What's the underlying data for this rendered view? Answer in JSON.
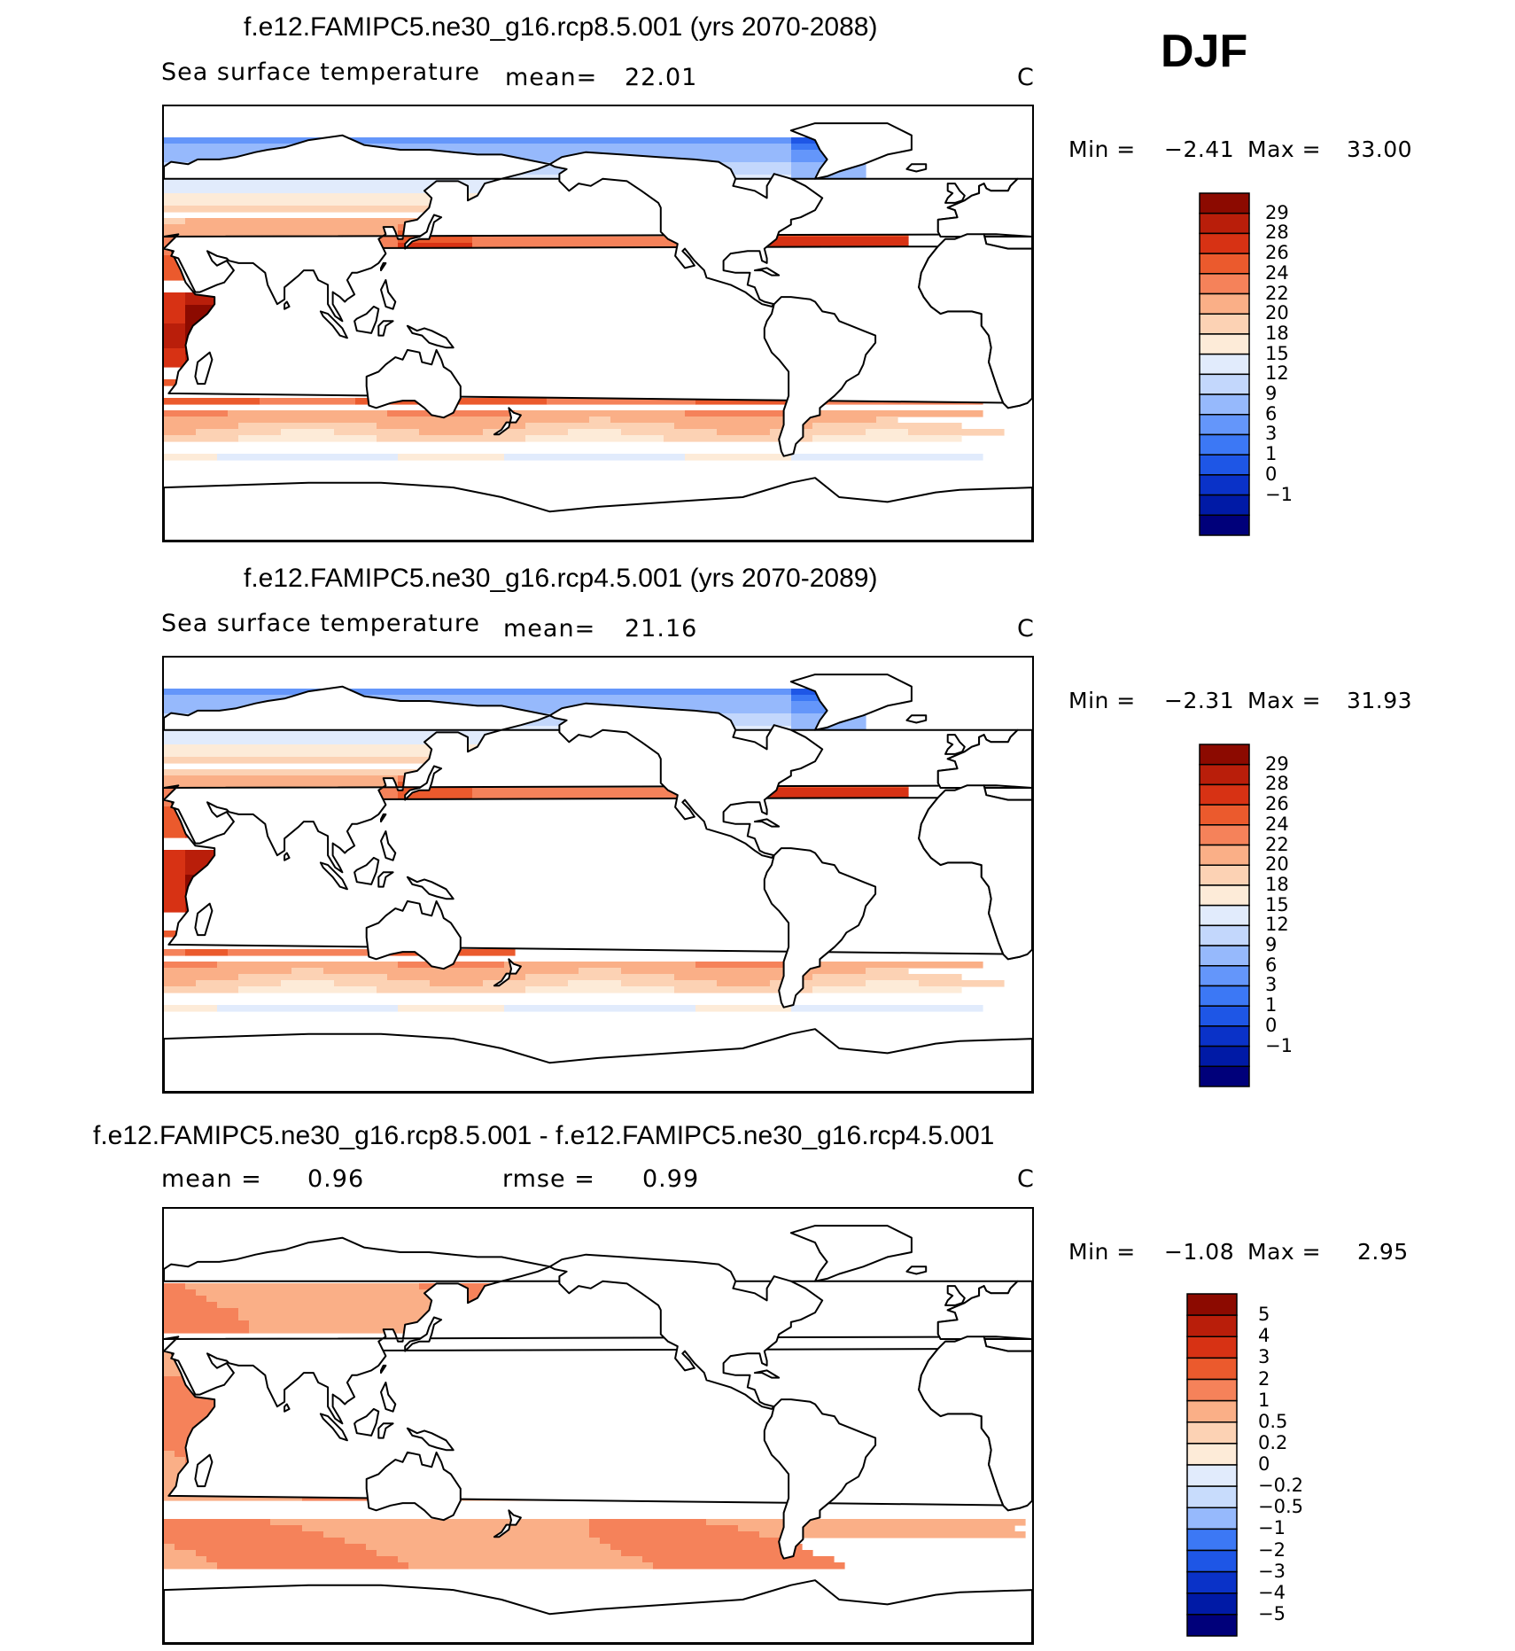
{
  "season": "DJF",
  "colors": {
    "abs_palette": [
      "#00007a",
      "#001aa6",
      "#0a32c8",
      "#1e56e6",
      "#3c78f5",
      "#6496fa",
      "#96b9fc",
      "#c3d7fc",
      "#e1ebfc",
      "#fdebd8",
      "#fcd2b4",
      "#faaf87",
      "#f5825a",
      "#eb5a2d",
      "#d73214",
      "#b91e0a",
      "#8c0a00"
    ],
    "diff_palette": [
      "#00007a",
      "#001aa6",
      "#0a32c8",
      "#1e56e6",
      "#3c78f5",
      "#96b9fc",
      "#c8dcfc",
      "#e1ebfc",
      "#fdebd8",
      "#fcd2b4",
      "#faaf87",
      "#f5825a",
      "#eb5a2d",
      "#d73214",
      "#b91e0a",
      "#8c0a00"
    ],
    "land": "#ffffff",
    "coast": "#000000"
  },
  "panels": [
    {
      "title": "f.e12.FAMIPC5.ne30_g16.rcp8.5.001 (yrs 2070-2088)",
      "variable": "Sea surface temperature",
      "mean_label": "mean=",
      "mean_value": "22.01",
      "units": "C",
      "min_label": "Min =",
      "min_value": "−2.41",
      "max_label": "Max =",
      "max_value": "33.00",
      "colorbar_ticks": [
        "29",
        "28",
        "26",
        "24",
        "22",
        "20",
        "18",
        "15",
        "12",
        "9",
        "6",
        "3",
        "1",
        "0",
        "−1"
      ],
      "kind": "abs",
      "warm": 1.0
    },
    {
      "title": "f.e12.FAMIPC5.ne30_g16.rcp4.5.001 (yrs 2070-2089)",
      "variable": "Sea surface temperature",
      "mean_label": "mean=",
      "mean_value": "21.16",
      "units": "C",
      "min_label": "Min =",
      "min_value": "−2.31",
      "max_label": "Max =",
      "max_value": "31.93",
      "colorbar_ticks": [
        "29",
        "28",
        "26",
        "24",
        "22",
        "20",
        "18",
        "15",
        "12",
        "9",
        "6",
        "3",
        "1",
        "0",
        "−1"
      ],
      "kind": "abs",
      "warm": 0.9
    },
    {
      "title": "f.e12.FAMIPC5.ne30_g16.rcp8.5.001 - f.e12.FAMIPC5.ne30_g16.rcp4.5.001",
      "mean_label": "mean =",
      "mean_value": "0.96",
      "rmse_label": "rmse =",
      "rmse_value": "0.99",
      "units": "C",
      "min_label": "Min =",
      "min_value": "−1.08",
      "max_label": "Max =",
      "max_value": "2.95",
      "colorbar_ticks": [
        "5",
        "4",
        "3",
        "2",
        "1",
        "0.5",
        "0.2",
        "0",
        "−0.2",
        "−0.5",
        "−1",
        "−2",
        "−3",
        "−4",
        "−5"
      ],
      "kind": "diff"
    }
  ]
}
